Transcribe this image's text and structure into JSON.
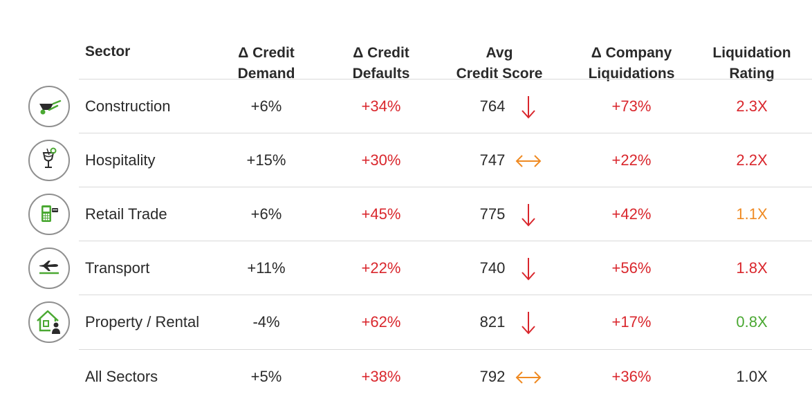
{
  "colors": {
    "text": "#2a2a2a",
    "red": "#d9262c",
    "orange": "#ef8a22",
    "green": "#4aa832",
    "icon_gray": "#8f8f8f",
    "icon_dark": "#2b2b2b",
    "icon_green": "#4aa832"
  },
  "chart_data": {
    "type": "table",
    "columns": [
      {
        "key": "sector",
        "label": "Sector"
      },
      {
        "key": "credit_demand",
        "label": "Δ Credit\nDemand"
      },
      {
        "key": "credit_defaults",
        "label": "Δ Credit\nDefaults"
      },
      {
        "key": "avg_credit_score",
        "label": "Avg\nCredit Score"
      },
      {
        "key": "company_liquidations",
        "label": "Δ Company\nLiquidations"
      },
      {
        "key": "liquidation_rating",
        "label": "Liquidation\nRating"
      }
    ],
    "rows": [
      {
        "icon": "wheelbarrow-icon",
        "sector": "Construction",
        "credit_demand": "+6%",
        "credit_defaults": "+34%",
        "avg_credit_score": "764",
        "score_trend": "down",
        "company_liquidations": "+73%",
        "liquidation_rating": "2.3X",
        "rating_color": "red"
      },
      {
        "icon": "cocktail-icon",
        "sector": "Hospitality",
        "credit_demand": "+15%",
        "credit_defaults": "+30%",
        "avg_credit_score": "747",
        "score_trend": "flat",
        "company_liquidations": "+22%",
        "liquidation_rating": "2.2X",
        "rating_color": "red"
      },
      {
        "icon": "card-terminal-icon",
        "sector": "Retail Trade",
        "credit_demand": "+6%",
        "credit_defaults": "+45%",
        "avg_credit_score": "775",
        "score_trend": "down",
        "company_liquidations": "+42%",
        "liquidation_rating": "1.1X",
        "rating_color": "orange"
      },
      {
        "icon": "airplane-icon",
        "sector": "Transport",
        "credit_demand": "+11%",
        "credit_defaults": "+22%",
        "avg_credit_score": "740",
        "score_trend": "down",
        "company_liquidations": "+56%",
        "liquidation_rating": "1.8X",
        "rating_color": "red"
      },
      {
        "icon": "house-person-icon",
        "sector": "Property / Rental",
        "credit_demand": "-4%",
        "credit_defaults": "+62%",
        "avg_credit_score": "821",
        "score_trend": "down",
        "company_liquidations": "+17%",
        "liquidation_rating": "0.8X",
        "rating_color": "green"
      },
      {
        "icon": null,
        "sector": "All Sectors",
        "credit_demand": "+5%",
        "credit_defaults": "+38%",
        "avg_credit_score": "792",
        "score_trend": "flat",
        "company_liquidations": "+36%",
        "liquidation_rating": "1.0X",
        "rating_color": "text"
      }
    ]
  }
}
